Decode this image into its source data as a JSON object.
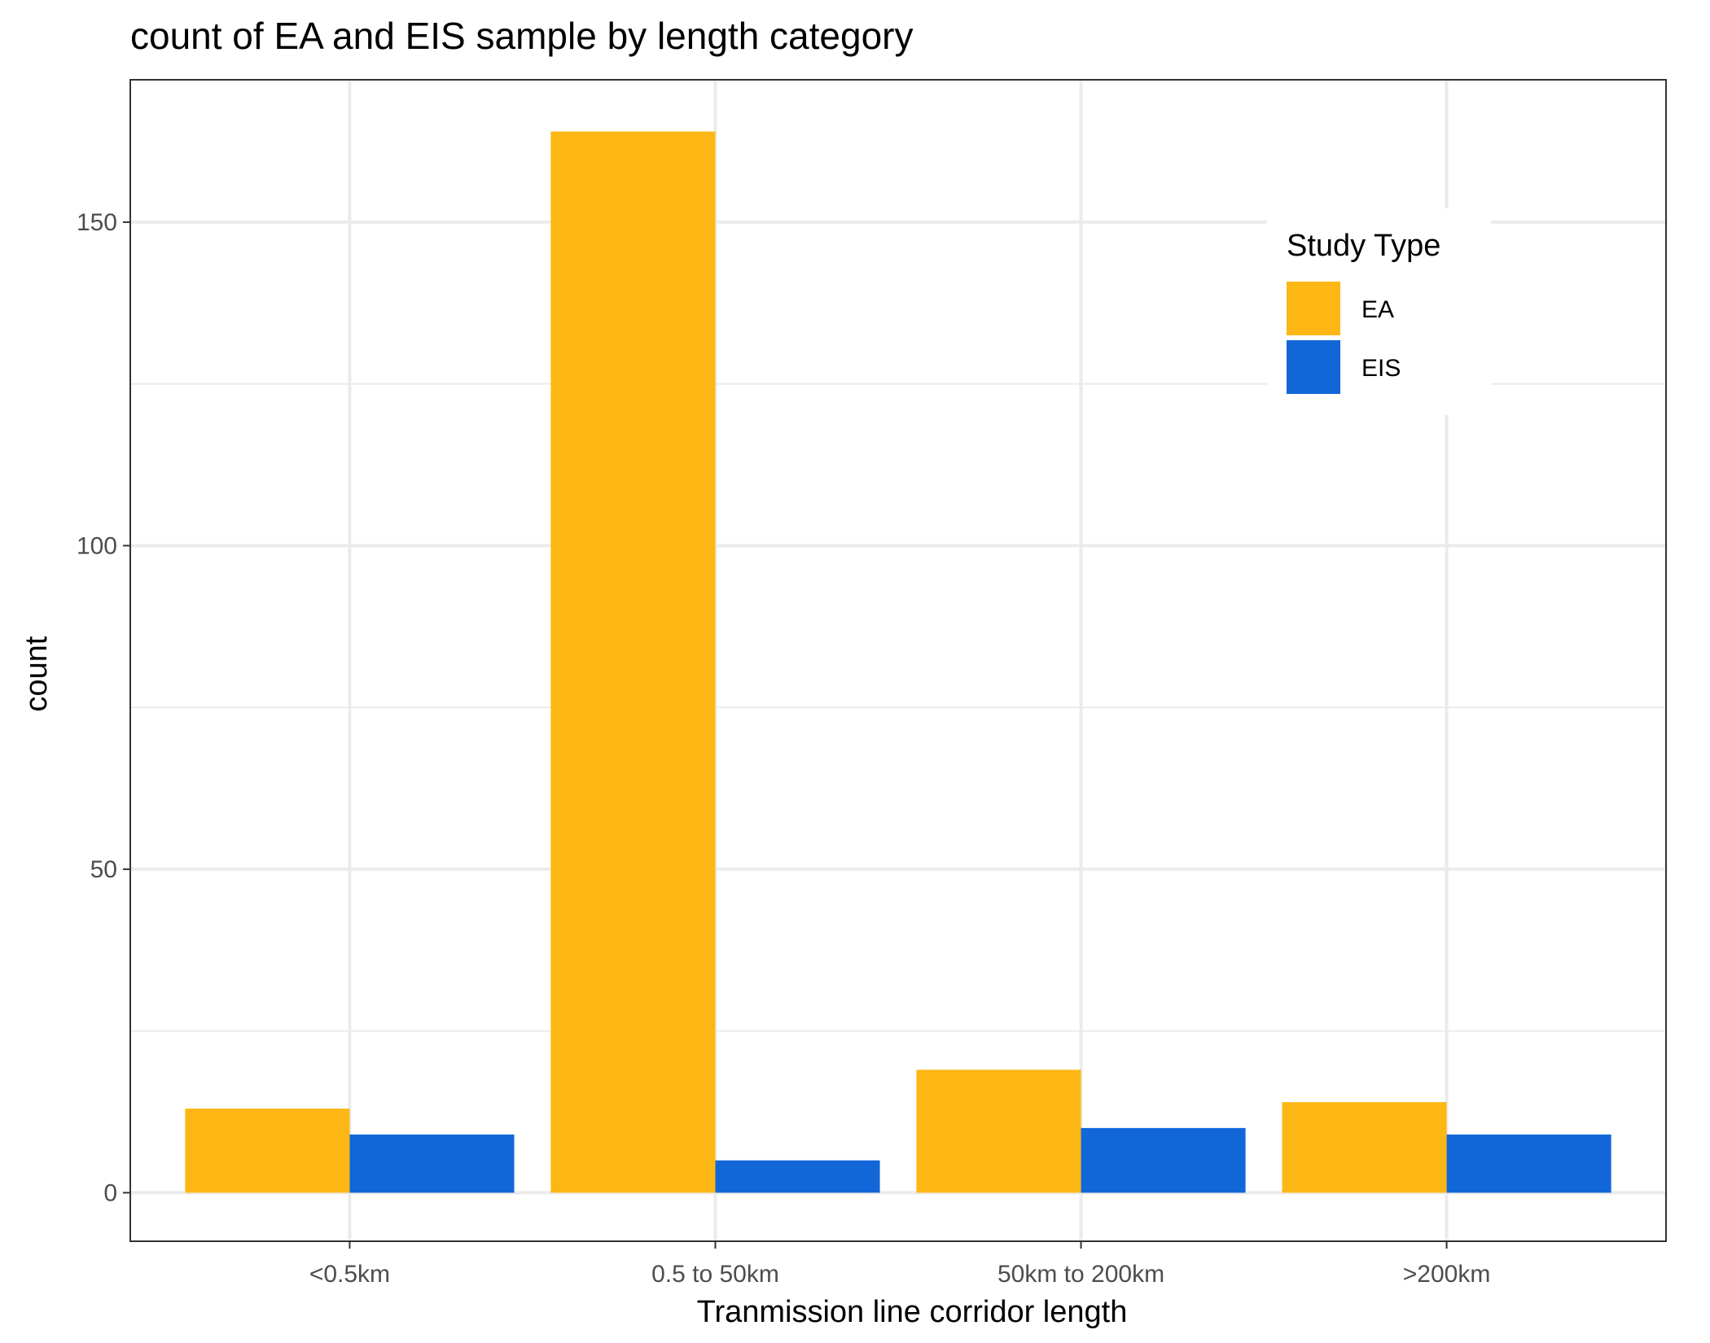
{
  "chart_data": {
    "type": "bar",
    "title": "count of EA and EIS sample by length category",
    "xlabel": "Tranmission line corridor length",
    "ylabel": "count",
    "categories": [
      "<0.5km",
      "0.5 to 50km",
      "50km to 200km",
      ">200km"
    ],
    "series": [
      {
        "name": "EA",
        "values": [
          13,
          164,
          19,
          14
        ],
        "color": "#FDB714"
      },
      {
        "name": "EIS",
        "values": [
          9,
          5,
          10,
          9
        ],
        "color": "#1167D8"
      }
    ],
    "ylim": [
      -7.5,
      172
    ],
    "yticks": [
      0,
      50,
      100,
      150
    ],
    "grid": true,
    "legend": {
      "title": "Study Type",
      "position": "top-right"
    }
  }
}
